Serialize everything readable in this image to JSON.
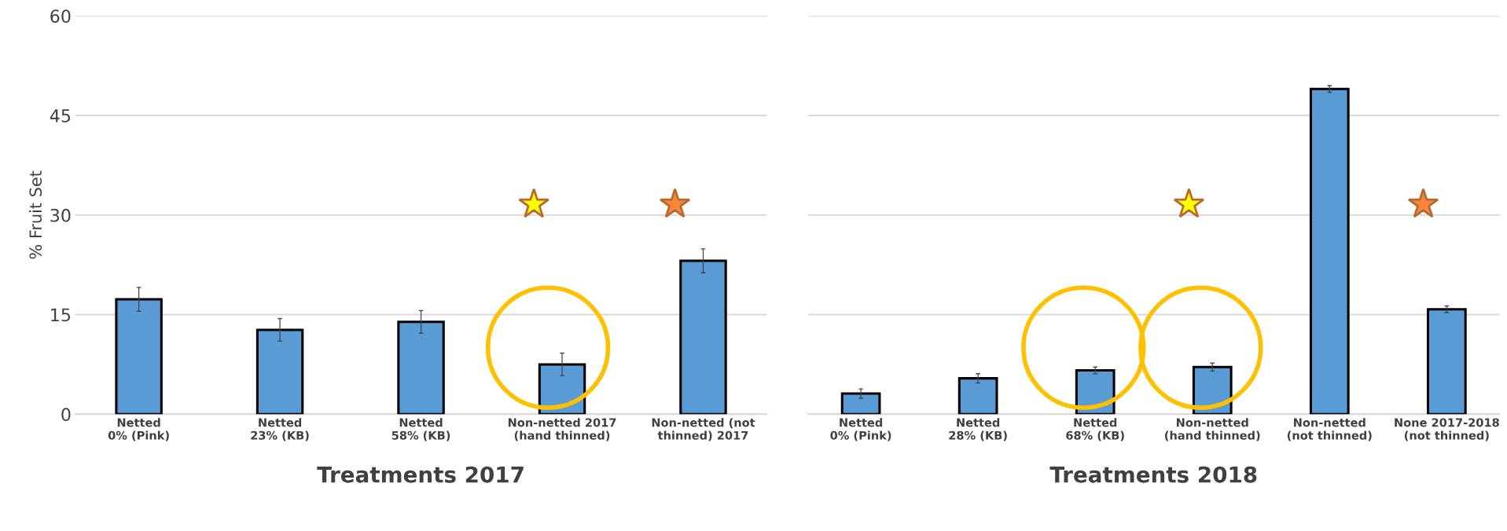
{
  "chart_data": [
    {
      "type": "bar",
      "xlabel": "Treatments 2017",
      "ylabel": "% Fruit Set",
      "categories": [
        "Netted 0% (Pink)",
        "Netted 23% (KB)",
        "Netted 58% (KB)",
        "Non-netted 2017 (hand thinned)",
        "Non-netted (not thinned) 2017"
      ],
      "series": [
        {
          "color": "#5b9bd5",
          "values": [
            17.3,
            12.7,
            13.9,
            7.5,
            23.1
          ],
          "errors": [
            1.8,
            1.7,
            1.7,
            1.7,
            1.8
          ]
        }
      ],
      "ylim": [
        0,
        60
      ],
      "yticks": [
        0,
        15,
        30,
        45,
        60
      ],
      "grid": "y"
    },
    {
      "type": "bar",
      "xlabel": "Treatments 2018",
      "categories": [
        "Netted 0% (Pink)",
        "Netted 28% (KB)",
        "Netted 68% (KB)",
        "Non-netted (hand thinned)",
        "Non-netted (not thinned)",
        "None 2017-2018 (not thinned)"
      ],
      "series": [
        {
          "color": "#5b9bd5",
          "values": [
            3.1,
            5.4,
            6.6,
            7.1,
            49.0,
            15.8
          ],
          "errors": [
            0.7,
            0.7,
            0.5,
            0.6,
            0.5,
            0.5
          ]
        }
      ],
      "ylim": [
        0,
        60
      ],
      "yticks": [
        0,
        15,
        30,
        45,
        60
      ],
      "grid": "y",
      "tick_labels": "x"
    }
  ]
}
